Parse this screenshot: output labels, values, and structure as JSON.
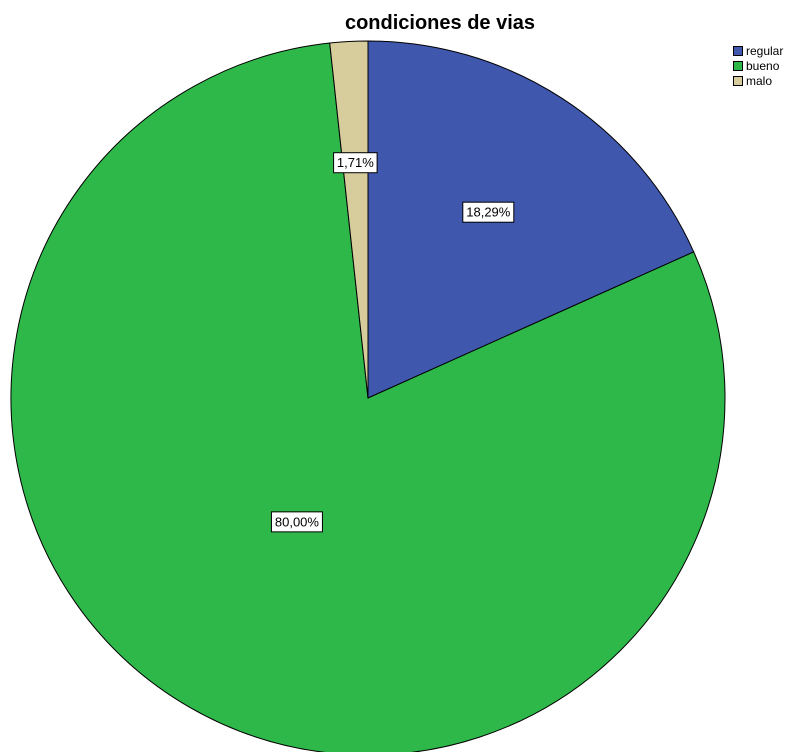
{
  "chart_data": {
    "type": "pie",
    "title": "condiciones de vias",
    "slices": [
      {
        "name": "regular",
        "value": 18.29,
        "label": "18,29%",
        "color": "#3f57ad"
      },
      {
        "name": "bueno",
        "value": 80.0,
        "label": "80,00%",
        "color": "#2eb84a"
      },
      {
        "name": "malo",
        "value": 1.71,
        "label": "1,71%",
        "color": "#d6cc9c"
      }
    ],
    "legend": {
      "placement": "top-right",
      "entries": [
        "regular",
        "bueno",
        "malo"
      ]
    },
    "start_angle": "12 o'clock",
    "direction": "clockwise"
  }
}
